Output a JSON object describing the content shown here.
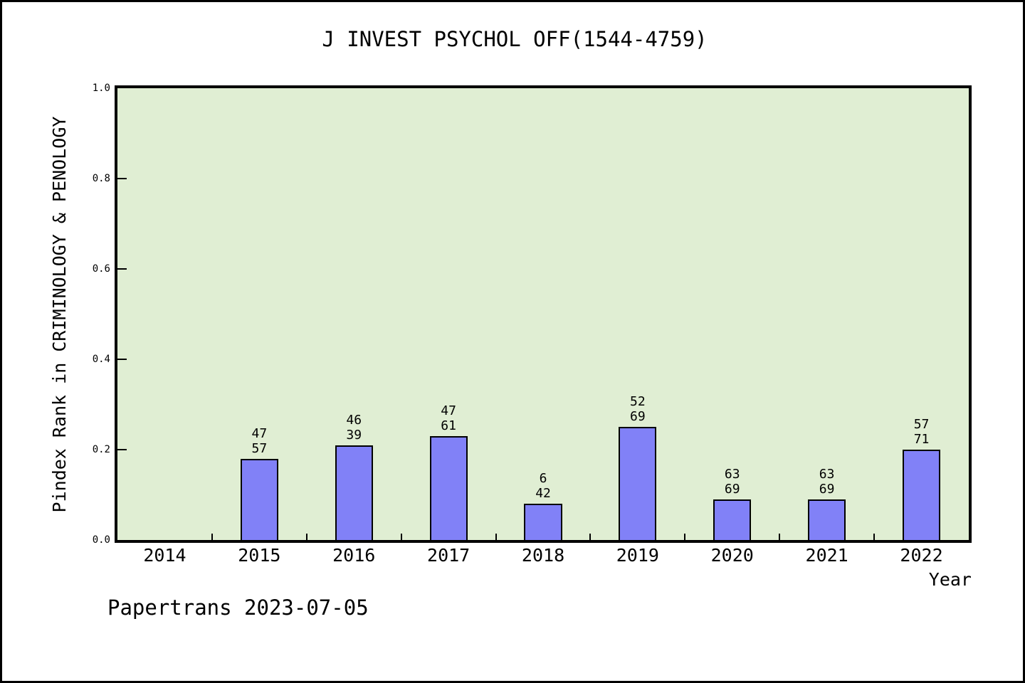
{
  "footer": "Papertrans 2023-07-05",
  "chart_data": {
    "type": "bar",
    "title": "J INVEST PSYCHOL OFF(1544-4759)",
    "xlabel": "Year",
    "ylabel": "Pindex Rank in CRIMINOLOGY & PENOLOGY",
    "categories": [
      "2014",
      "2015",
      "2016",
      "2017",
      "2018",
      "2019",
      "2020",
      "2021",
      "2022"
    ],
    "values": [
      null,
      0.18,
      0.21,
      0.23,
      0.08,
      0.25,
      0.09,
      0.09,
      0.2
    ],
    "bar_annotations": [
      null,
      [
        "47",
        "57"
      ],
      [
        "46",
        "39"
      ],
      [
        "47",
        "61"
      ],
      [
        "6",
        "42"
      ],
      [
        "52",
        "69"
      ],
      [
        "63",
        "69"
      ],
      [
        "63",
        "69"
      ],
      [
        "57",
        "71"
      ]
    ],
    "ylim": [
      0,
      1
    ],
    "yticks": [
      0.0,
      0.2,
      0.4,
      0.6,
      0.8,
      1.0
    ],
    "ytick_labels": [
      "0.0",
      "0.2",
      "0.4",
      "0.6",
      "0.8",
      "1.0"
    ],
    "grid": false,
    "legend_position": "none",
    "colors": {
      "plot_bg": "#e0eed3",
      "bar_fill": "#8181f7",
      "bar_edge": "#000000",
      "axis": "#000000",
      "text": "#000000"
    }
  }
}
